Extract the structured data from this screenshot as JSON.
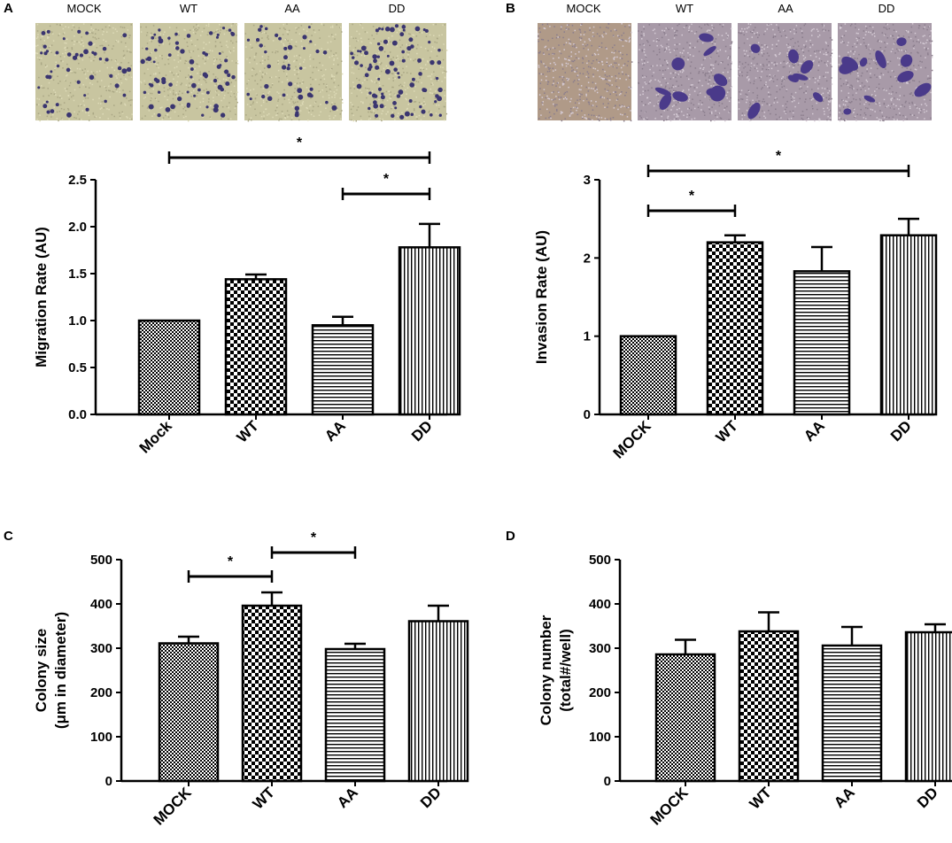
{
  "panels": [
    {
      "letter": "A",
      "image_labels": [
        "MOCK",
        "WT",
        "AA",
        "DD"
      ],
      "image_style": "migration"
    },
    {
      "letter": "B",
      "image_labels": [
        "MOCK",
        "WT",
        "AA",
        "DD"
      ],
      "image_style": "invasion"
    },
    {
      "letter": "C"
    },
    {
      "letter": "D"
    }
  ],
  "colors": {
    "bar_fill": "#ffffff",
    "stroke": "#000000",
    "migration_image_bg": "#c8c5a0",
    "migration_cells": "#3a3570",
    "invasion_image_bg": "#a89aa8",
    "invasion_cells": "#4a3a8a"
  },
  "chart_data": [
    {
      "type": "bar",
      "panel": "A",
      "ylabel": "Migration Rate (AU)",
      "categories": [
        "Mock",
        "WT",
        "AA",
        "DD"
      ],
      "values": [
        1.0,
        1.44,
        0.95,
        1.78
      ],
      "errors": [
        0.0,
        0.05,
        0.09,
        0.25
      ],
      "patterns": [
        "checker-fine",
        "checker-coarse",
        "hlines",
        "vlines"
      ],
      "ylim": [
        0,
        2.5
      ],
      "yticks": [
        "0.0",
        "0.5",
        "1.0",
        "1.5",
        "2.0",
        "2.5"
      ],
      "ytick_values": [
        0,
        0.5,
        1.0,
        1.5,
        2.0,
        2.5
      ],
      "significance": [
        {
          "from": 0,
          "to": 3,
          "label": "*"
        },
        {
          "from": 2,
          "to": 3,
          "label": "*"
        }
      ]
    },
    {
      "type": "bar",
      "panel": "B",
      "ylabel": "Invasion Rate (AU)",
      "categories": [
        "MOCK",
        "WT",
        "AA",
        "DD"
      ],
      "values": [
        1.0,
        2.2,
        1.83,
        2.29
      ],
      "errors": [
        0.0,
        0.09,
        0.31,
        0.21
      ],
      "patterns": [
        "checker-fine",
        "checker-coarse",
        "hlines",
        "vlines"
      ],
      "ylim": [
        0,
        3
      ],
      "yticks": [
        "0",
        "1",
        "2",
        "3"
      ],
      "ytick_values": [
        0,
        1,
        2,
        3
      ],
      "significance": [
        {
          "from": 0,
          "to": 3,
          "label": "*"
        },
        {
          "from": 0,
          "to": 1,
          "label": "*"
        }
      ]
    },
    {
      "type": "bar",
      "panel": "C",
      "ylabel_lines": [
        "Colony size",
        "(μm in diameter)"
      ],
      "categories": [
        "MOCK",
        "WT",
        "AA",
        "DD"
      ],
      "values": [
        311,
        396,
        298,
        361
      ],
      "errors": [
        15,
        30,
        12,
        35
      ],
      "patterns": [
        "checker-fine",
        "checker-coarse",
        "hlines",
        "vlines"
      ],
      "ylim": [
        0,
        500
      ],
      "yticks": [
        "0",
        "100",
        "200",
        "300",
        "400",
        "500"
      ],
      "ytick_values": [
        0,
        100,
        200,
        300,
        400,
        500
      ],
      "significance": [
        {
          "from": 0,
          "to": 1,
          "label": "*"
        },
        {
          "from": 1,
          "to": 2,
          "label": "*"
        }
      ]
    },
    {
      "type": "bar",
      "panel": "D",
      "ylabel_lines": [
        "Colony number",
        "(total#/well)"
      ],
      "categories": [
        "MOCK",
        "WT",
        "AA",
        "DD"
      ],
      "values": [
        286,
        338,
        306,
        336
      ],
      "errors": [
        33,
        43,
        42,
        18
      ],
      "patterns": [
        "checker-fine",
        "checker-coarse",
        "hlines",
        "vlines"
      ],
      "ylim": [
        0,
        500
      ],
      "yticks": [
        "0",
        "100",
        "200",
        "300",
        "400",
        "500"
      ],
      "ytick_values": [
        0,
        100,
        200,
        300,
        400,
        500
      ],
      "significance": []
    }
  ]
}
